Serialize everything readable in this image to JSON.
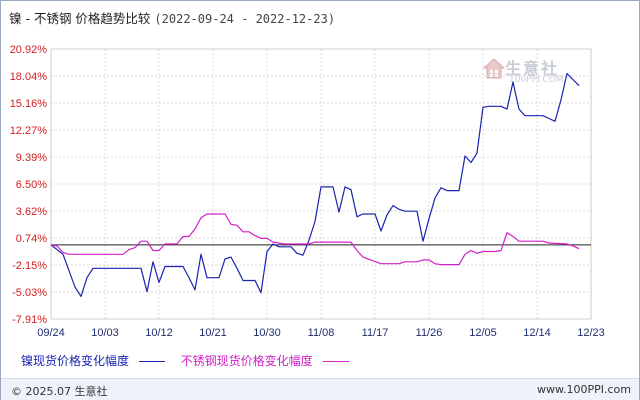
{
  "header": {
    "title": "镍 - 不锈钢 价格趋势比较",
    "date_range": "(2022-09-24 - 2022-12-23)"
  },
  "watermark": {
    "brand": "生意社",
    "url": "100PPI.COM",
    "icon": "house-logo-icon"
  },
  "footer": {
    "copyright": "© 2025.07 生意社",
    "site": "www.100PPI.com"
  },
  "colors": {
    "series_nickel": "#1a23b0",
    "series_stainless": "#d020c8",
    "y_tick_labels": "#d02020",
    "x_tick_labels": "#1f2d6d"
  },
  "chart_data": {
    "type": "line",
    "xlabel": "",
    "ylabel": "",
    "grid": true,
    "legend_position": "bottom",
    "x_range": [
      "09/24",
      "12/23"
    ],
    "ylim": [
      -7.91,
      20.92
    ],
    "y_ticks": [
      "20.92%",
      "18.04%",
      "15.16%",
      "12.27%",
      "9.39%",
      "6.50%",
      "3.62%",
      "0.74%",
      "-2.15%",
      "-5.03%",
      "-7.91%"
    ],
    "y_tick_values": [
      20.92,
      18.04,
      15.16,
      12.27,
      9.39,
      6.5,
      3.62,
      0.74,
      -2.15,
      -5.03,
      -7.91
    ],
    "x_ticks": [
      "09/24",
      "10/03",
      "10/12",
      "10/21",
      "10/30",
      "11/08",
      "11/17",
      "11/26",
      "12/05",
      "12/14",
      "12/23"
    ],
    "series": [
      {
        "name": "镍现货价格变化幅度",
        "color": "#1a23b0",
        "points": [
          [
            "09/24",
            0
          ],
          [
            "09/26",
            -1.0
          ],
          [
            "09/28",
            -4.5
          ],
          [
            "09/29",
            -5.5
          ],
          [
            "09/30",
            -3.5
          ],
          [
            "10/01",
            -2.5
          ],
          [
            "10/08",
            -2.5
          ],
          [
            "10/09",
            -2.5
          ],
          [
            "10/10",
            -5.0
          ],
          [
            "10/11",
            -1.8
          ],
          [
            "10/12",
            -4.0
          ],
          [
            "10/13",
            -2.3
          ],
          [
            "10/16",
            -2.3
          ],
          [
            "10/17",
            -3.5
          ],
          [
            "10/18",
            -4.8
          ],
          [
            "10/19",
            -1.0
          ],
          [
            "10/20",
            -3.5
          ],
          [
            "10/22",
            -3.5
          ],
          [
            "10/23",
            -1.5
          ],
          [
            "10/24",
            -1.3
          ],
          [
            "10/25",
            -2.5
          ],
          [
            "10/26",
            -3.8
          ],
          [
            "10/28",
            -3.8
          ],
          [
            "10/29",
            -5.1
          ],
          [
            "10/30",
            -0.7
          ],
          [
            "10/31",
            0.1
          ],
          [
            "11/01",
            -0.2
          ],
          [
            "11/03",
            -0.2
          ],
          [
            "11/04",
            -0.9
          ],
          [
            "11/05",
            -1.1
          ],
          [
            "11/06",
            0.5
          ],
          [
            "11/07",
            2.5
          ],
          [
            "11/08",
            6.2
          ],
          [
            "11/10",
            6.2
          ],
          [
            "11/11",
            3.5
          ],
          [
            "11/12",
            6.2
          ],
          [
            "11/13",
            5.9
          ],
          [
            "11/14",
            3.0
          ],
          [
            "11/15",
            3.3
          ],
          [
            "11/17",
            3.3
          ],
          [
            "11/18",
            1.5
          ],
          [
            "11/19",
            3.2
          ],
          [
            "11/20",
            4.2
          ],
          [
            "11/21",
            3.8
          ],
          [
            "11/22",
            3.6
          ],
          [
            "11/24",
            3.6
          ],
          [
            "11/25",
            0.4
          ],
          [
            "11/26",
            2.8
          ],
          [
            "11/27",
            5.0
          ],
          [
            "11/28",
            6.1
          ],
          [
            "11/29",
            5.8
          ],
          [
            "12/01",
            5.8
          ],
          [
            "12/02",
            9.5
          ],
          [
            "12/03",
            8.8
          ],
          [
            "12/04",
            9.8
          ],
          [
            "12/05",
            14.7
          ],
          [
            "12/06",
            14.8
          ],
          [
            "12/08",
            14.8
          ],
          [
            "12/09",
            14.5
          ],
          [
            "12/10",
            17.4
          ],
          [
            "12/11",
            14.5
          ],
          [
            "12/12",
            13.8
          ],
          [
            "12/15",
            13.8
          ],
          [
            "12/16",
            13.5
          ],
          [
            "12/17",
            13.2
          ],
          [
            "12/18",
            15.5
          ],
          [
            "12/19",
            18.3
          ],
          [
            "12/21",
            17.0
          ]
        ]
      },
      {
        "name": "不锈钢现货价格变化幅度",
        "color": "#d020c8",
        "points": [
          [
            "09/24",
            0
          ],
          [
            "09/25",
            -0.1
          ],
          [
            "09/26",
            -0.8
          ],
          [
            "09/27",
            -1.0
          ],
          [
            "10/06",
            -1.0
          ],
          [
            "10/07",
            -0.5
          ],
          [
            "10/08",
            -0.3
          ],
          [
            "10/09",
            0.4
          ],
          [
            "10/10",
            0.4
          ],
          [
            "10/11",
            -0.6
          ],
          [
            "10/12",
            -0.6
          ],
          [
            "10/13",
            0.1
          ],
          [
            "10/15",
            0.1
          ],
          [
            "10/16",
            0.9
          ],
          [
            "10/17",
            0.9
          ],
          [
            "10/18",
            1.7
          ],
          [
            "10/19",
            2.9
          ],
          [
            "10/20",
            3.3
          ],
          [
            "10/23",
            3.3
          ],
          [
            "10/24",
            2.2
          ],
          [
            "10/25",
            2.1
          ],
          [
            "10/26",
            1.4
          ],
          [
            "10/27",
            1.4
          ],
          [
            "10/28",
            1.0
          ],
          [
            "10/29",
            0.7
          ],
          [
            "10/30",
            0.7
          ],
          [
            "10/31",
            0.3
          ],
          [
            "11/02",
            0.1
          ],
          [
            "11/06",
            0.1
          ],
          [
            "11/07",
            0.3
          ],
          [
            "11/13",
            0.3
          ],
          [
            "11/14",
            -0.6
          ],
          [
            "11/15",
            -1.3
          ],
          [
            "11/18",
            -2.0
          ],
          [
            "11/21",
            -2.0
          ],
          [
            "11/22",
            -1.8
          ],
          [
            "11/24",
            -1.8
          ],
          [
            "11/25",
            -1.6
          ],
          [
            "11/26",
            -1.6
          ],
          [
            "11/27",
            -2.0
          ],
          [
            "11/28",
            -2.1
          ],
          [
            "12/01",
            -2.1
          ],
          [
            "12/02",
            -1.0
          ],
          [
            "12/03",
            -0.6
          ],
          [
            "12/04",
            -0.9
          ],
          [
            "12/05",
            -0.7
          ],
          [
            "12/07",
            -0.7
          ],
          [
            "12/08",
            -0.6
          ],
          [
            "12/09",
            1.3
          ],
          [
            "12/10",
            0.9
          ],
          [
            "12/11",
            0.4
          ],
          [
            "12/15",
            0.4
          ],
          [
            "12/16",
            0.2
          ],
          [
            "12/19",
            0.1
          ],
          [
            "12/20",
            -0.1
          ],
          [
            "12/21",
            -0.4
          ]
        ]
      }
    ]
  }
}
